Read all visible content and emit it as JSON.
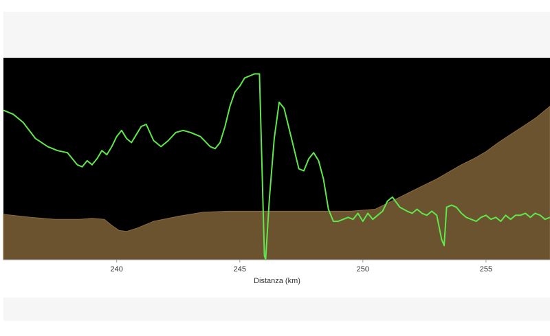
{
  "chart_data": {
    "type": "area",
    "title": "",
    "xlabel": "Distanza (km)",
    "ylabel": "",
    "xlim": [
      235.4,
      257.6
    ],
    "ylim": [
      0,
      100
    ],
    "grid": false,
    "xticks": [
      240,
      245,
      250,
      255
    ],
    "xtick_labels": [
      "240",
      "245",
      "250",
      "255"
    ],
    "colors": {
      "plot_background": "#000000",
      "terrain_fill": "#6b5330",
      "terrain_edge": "#8a6d3e",
      "line": "#5fe84a"
    },
    "series": [
      {
        "kind": "area",
        "x": [
          235.4,
          236.5,
          237.5,
          238.5,
          239.0,
          239.5,
          239.8,
          240.1,
          240.4,
          240.8,
          241.5,
          242.5,
          243.5,
          244.5,
          245.5,
          246.5,
          247.5,
          248.5,
          249.5,
          250.5,
          251.0,
          251.5,
          252.0,
          252.5,
          253.0,
          253.5,
          254.0,
          254.5,
          255.0,
          255.5,
          256.0,
          256.5,
          257.0,
          257.6
        ],
        "y": [
          22.5,
          21.0,
          20.0,
          20.0,
          20.5,
          20.0,
          17.0,
          14.5,
          14.0,
          15.5,
          19.0,
          21.5,
          23.5,
          24.0,
          24.0,
          24.0,
          24.0,
          24.0,
          24.0,
          25.0,
          28.0,
          31.0,
          34.0,
          37.0,
          40.0,
          43.5,
          47.0,
          50.0,
          53.5,
          58.0,
          62.0,
          66.0,
          70.0,
          76.0
        ]
      },
      {
        "kind": "line",
        "x": [
          235.4,
          235.8,
          236.2,
          236.7,
          237.2,
          237.6,
          238.0,
          238.4,
          238.6,
          238.8,
          239.0,
          239.2,
          239.4,
          239.6,
          239.8,
          240.0,
          240.2,
          240.4,
          240.6,
          240.8,
          241.0,
          241.2,
          241.5,
          241.8,
          242.1,
          242.4,
          242.7,
          243.0,
          243.4,
          243.8,
          244.0,
          244.2,
          244.4,
          244.6,
          244.8,
          245.0,
          245.2,
          245.4,
          245.6,
          245.8,
          246.0,
          246.05,
          246.2,
          246.4,
          246.6,
          246.8,
          247.0,
          247.2,
          247.4,
          247.6,
          247.8,
          248.0,
          248.2,
          248.4,
          248.6,
          248.8,
          249.0,
          249.2,
          249.4,
          249.6,
          249.8,
          250.0,
          250.2,
          250.4,
          250.6,
          250.8,
          251.0,
          251.2,
          251.5,
          251.8,
          252.0,
          252.2,
          252.4,
          252.6,
          252.8,
          253.0,
          253.2,
          253.3,
          253.4,
          253.6,
          253.8,
          254.0,
          254.2,
          254.4,
          254.6,
          254.8,
          255.0,
          255.2,
          255.4,
          255.6,
          255.8,
          256.0,
          256.2,
          256.4,
          256.6,
          256.8,
          257.0,
          257.2,
          257.4,
          257.6
        ],
        "y": [
          74,
          72,
          68,
          60,
          56,
          54,
          53,
          47,
          46,
          49,
          47,
          50,
          54,
          52,
          56,
          61,
          64,
          60,
          58,
          62,
          66,
          67,
          59,
          56,
          59,
          63,
          64,
          63,
          61,
          56,
          55,
          58,
          66,
          76,
          83,
          86,
          90,
          91,
          92,
          92,
          2,
          0,
          30,
          60,
          78,
          75,
          65,
          55,
          45,
          44,
          50,
          53,
          49,
          40,
          25,
          19,
          19,
          20,
          21,
          20,
          23,
          19,
          23,
          20,
          22,
          24,
          29,
          31,
          26,
          24,
          23,
          25,
          23,
          22,
          24,
          22,
          10,
          7,
          26,
          27,
          26,
          23,
          21,
          20,
          19,
          21,
          22,
          20,
          21,
          19,
          22,
          20,
          22,
          22,
          23,
          21,
          23,
          22,
          20,
          21
        ]
      }
    ]
  }
}
